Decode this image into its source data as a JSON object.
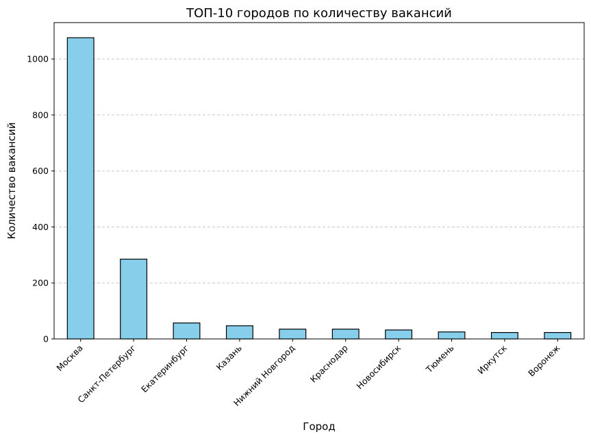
{
  "chart_data": {
    "type": "bar",
    "title": "ТОП-10 городов по количеству вакансий",
    "xlabel": "Город",
    "ylabel": "Количество вакансий",
    "categories": [
      "Москва",
      "Санкт-Петербург",
      "Екатеринбург",
      "Казань",
      "Нижний Новгород",
      "Краснодар",
      "Новосибирск",
      "Тюмень",
      "Иркутск",
      "Воронеж"
    ],
    "values": [
      1076,
      285,
      57,
      47,
      35,
      35,
      32,
      25,
      23,
      23
    ],
    "ylim": [
      0,
      1130
    ],
    "yticks": [
      0,
      200,
      400,
      600,
      800,
      1000
    ],
    "ytick_labels": [
      "0",
      "200",
      "400",
      "600",
      "800",
      "1000"
    ],
    "grid": "y-dashed",
    "legend": "none",
    "colors": {
      "bar_fill": "#87ceeb",
      "bar_edge": "#000000",
      "grid": "#c8c8c8"
    }
  }
}
